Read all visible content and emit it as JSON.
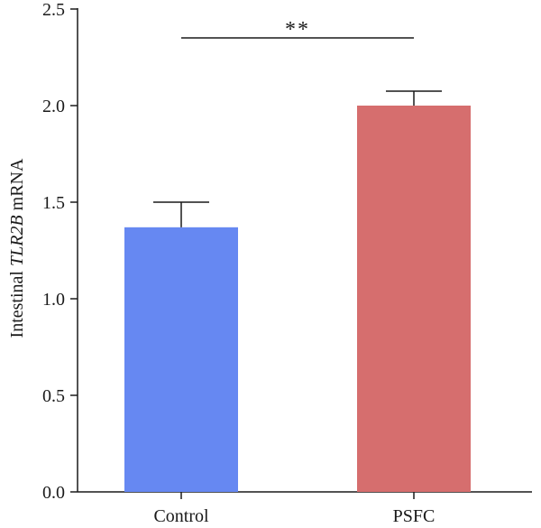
{
  "chart_data": {
    "type": "bar",
    "ylabel_parts": [
      "Intestinal ",
      "TLR2B",
      " mRNA"
    ],
    "categories": [
      "Control",
      "PSFC"
    ],
    "values": [
      1.37,
      2.0
    ],
    "errors": [
      0.13,
      0.075
    ],
    "colors": [
      "#6688f2",
      "#d66e6e"
    ],
    "ylim": [
      0,
      2.5
    ],
    "yticks": [
      "0.0",
      "0.5",
      "1.0",
      "1.5",
      "2.0",
      "2.5"
    ],
    "significance": {
      "from": 0,
      "to": 1,
      "label": "**"
    },
    "grid": false,
    "legend": "none"
  }
}
